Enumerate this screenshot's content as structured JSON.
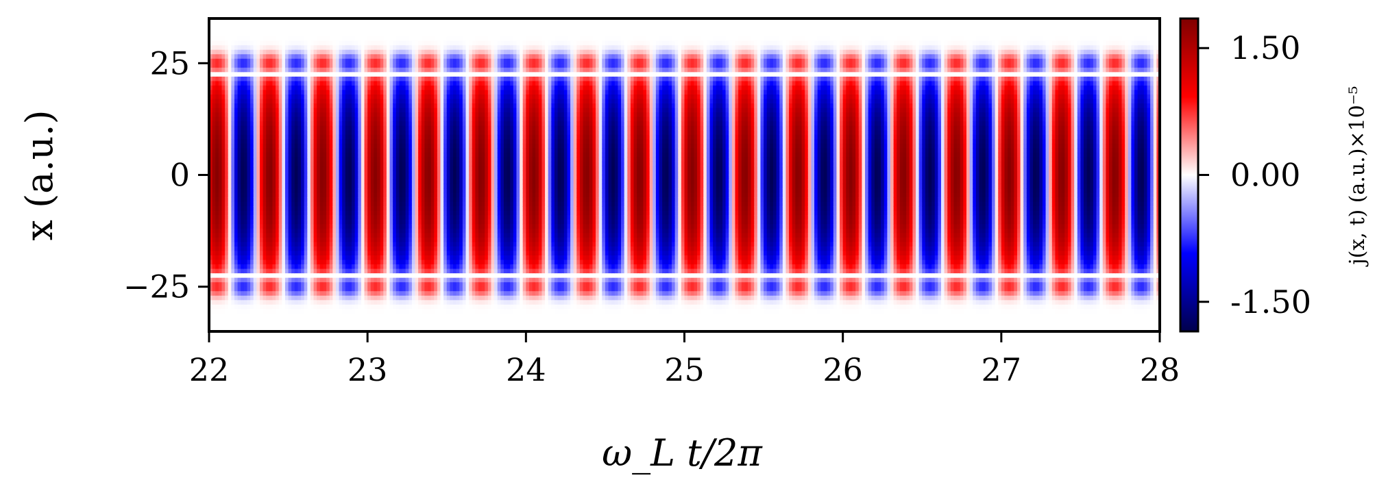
{
  "chart_data": {
    "type": "heatmap",
    "xlabel": "ω_L t/2π",
    "ylabel": "x (a.u.)",
    "xlim": [
      22,
      28
    ],
    "ylim": [
      -35,
      35
    ],
    "x_ticks": [
      {
        "value": 22,
        "label": "22"
      },
      {
        "value": 23,
        "label": "23"
      },
      {
        "value": 24,
        "label": "24"
      },
      {
        "value": 25,
        "label": "25"
      },
      {
        "value": 26,
        "label": "26"
      },
      {
        "value": 27,
        "label": "27"
      },
      {
        "value": 28,
        "label": "28"
      }
    ],
    "y_ticks": [
      {
        "value": 25,
        "label": "25"
      },
      {
        "value": 0,
        "label": "0"
      },
      {
        "value": -25,
        "label": "−25"
      }
    ],
    "colorbar": {
      "label": "j(x, t)  (a.u.)×10⁻⁵",
      "colormap": "seismic",
      "range": [
        -1.85,
        1.85
      ],
      "ticks": [
        {
          "value": 1.5,
          "label": "1.50"
        },
        {
          "value": 0,
          "label": "0.00"
        },
        {
          "value": -1.5,
          "label": "-1.50"
        }
      ]
    },
    "oscillation": {
      "half_periods_per_unit": 6,
      "core_half_width": 22,
      "side_lobe_center": 25,
      "side_lobe_relative_amplitude": 0.45
    },
    "colors": {
      "negative": "#00004c",
      "zero": "#ffffff",
      "positive": "#800000"
    }
  }
}
